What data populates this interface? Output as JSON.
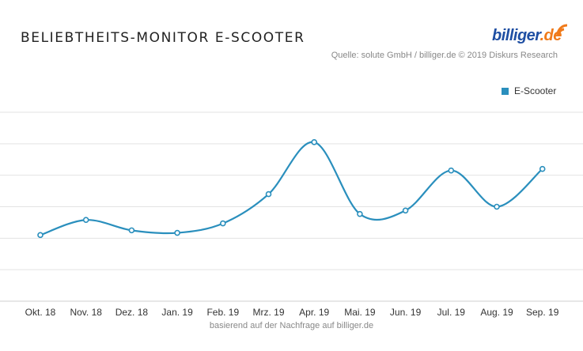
{
  "header": {
    "title": "BELIEBTHEITS-MONITOR E-SCOOTER",
    "source": "Quelle: solute GmbH / billiger.de © 2019 Diskurs Research"
  },
  "logo": {
    "part1": "billiger",
    "part2": ".de",
    "icon": "signal-waves-icon"
  },
  "footnote": "basierend auf der Nachfrage auf billiger.de",
  "colors": {
    "series": "#2a8fbd",
    "grid": "#e3e3e3",
    "logo_blue": "#1f4fa3",
    "logo_orange": "#f07a1a"
  },
  "chart_data": {
    "type": "line",
    "title": "BELIEBTHEITS-MONITOR E-SCOOTER",
    "categories": [
      "Okt. 18",
      "Nov. 18",
      "Dez. 18",
      "Jan. 19",
      "Feb. 19",
      "Mrz. 19",
      "Apr. 19",
      "Mai. 19",
      "Jun. 19",
      "Jul. 19",
      "Aug. 19",
      "Sep. 19"
    ],
    "series": [
      {
        "name": "E-Scooter",
        "values": [
          2.1,
          2.58,
          2.25,
          2.17,
          2.47,
          3.4,
          5.05,
          2.77,
          2.88,
          4.15,
          3.0,
          4.2
        ]
      }
    ],
    "ylim": [
      0,
      6
    ],
    "grid": true,
    "y_tick_labels_shown": false,
    "legend": "top-right",
    "smooth": true
  }
}
